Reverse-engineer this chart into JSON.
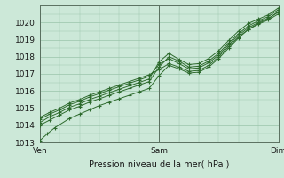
{
  "title": "",
  "xlabel": "Pression niveau de la mer( hPa )",
  "ylabel": "",
  "xlim": [
    0,
    48
  ],
  "ylim": [
    1013,
    1021
  ],
  "yticks": [
    1013,
    1014,
    1015,
    1016,
    1017,
    1018,
    1019,
    1020
  ],
  "xtick_positions": [
    0,
    24,
    48
  ],
  "xtick_labels": [
    "Ven",
    "Sam",
    "Dim"
  ],
  "background_color": "#cce8d8",
  "grid_color": "#99c4aa",
  "line_color": "#2d6a2d",
  "marker_color": "#2d6a2d",
  "series": [
    [
      0.0,
      1013.1,
      1.5,
      1013.5,
      3.0,
      1013.85,
      6.0,
      1014.4,
      8.0,
      1014.65,
      10.0,
      1014.9,
      12.0,
      1015.15,
      14.0,
      1015.35,
      16.0,
      1015.55,
      18.0,
      1015.75,
      20.0,
      1015.95,
      22.0,
      1016.15,
      24.0,
      1016.9,
      26.0,
      1017.5,
      28.0,
      1017.3,
      30.0,
      1017.05,
      32.0,
      1017.1,
      34.0,
      1017.4,
      36.0,
      1017.9,
      38.0,
      1018.5,
      40.0,
      1019.1,
      42.0,
      1019.6,
      44.0,
      1019.95,
      46.0,
      1020.2,
      48.0,
      1020.65
    ],
    [
      0.0,
      1014.0,
      2.0,
      1014.3,
      4.0,
      1014.6,
      6.0,
      1014.9,
      8.0,
      1015.1,
      10.0,
      1015.35,
      12.0,
      1015.55,
      14.0,
      1015.75,
      16.0,
      1015.95,
      18.0,
      1016.15,
      20.0,
      1016.35,
      22.0,
      1016.55,
      24.0,
      1017.4,
      26.0,
      1018.0,
      28.0,
      1017.75,
      30.0,
      1017.4,
      32.0,
      1017.45,
      34.0,
      1017.75,
      36.0,
      1018.2,
      38.0,
      1018.8,
      40.0,
      1019.35,
      42.0,
      1019.8,
      44.0,
      1020.1,
      46.0,
      1020.35,
      48.0,
      1020.75
    ],
    [
      0.0,
      1014.15,
      2.0,
      1014.5,
      4.0,
      1014.75,
      6.0,
      1015.05,
      8.0,
      1015.25,
      10.0,
      1015.5,
      12.0,
      1015.7,
      14.0,
      1015.9,
      16.0,
      1016.1,
      18.0,
      1016.3,
      20.0,
      1016.5,
      22.0,
      1016.7,
      24.0,
      1017.7,
      26.0,
      1018.2,
      28.0,
      1017.85,
      30.0,
      1017.55,
      32.0,
      1017.6,
      34.0,
      1017.9,
      36.0,
      1018.35,
      38.0,
      1018.95,
      40.0,
      1019.5,
      42.0,
      1019.95,
      44.0,
      1020.2,
      46.0,
      1020.45,
      48.0,
      1020.85
    ],
    [
      0.0,
      1014.35,
      2.0,
      1014.65,
      4.0,
      1014.9,
      6.0,
      1015.2,
      8.0,
      1015.4,
      10.0,
      1015.65,
      12.0,
      1015.85,
      14.0,
      1016.05,
      16.0,
      1016.25,
      18.0,
      1016.45,
      20.0,
      1016.65,
      22.0,
      1016.85,
      24.0,
      1017.55,
      26.0,
      1017.9,
      28.0,
      1017.6,
      30.0,
      1017.3,
      32.0,
      1017.35,
      34.0,
      1017.65,
      36.0,
      1018.1,
      38.0,
      1018.7,
      40.0,
      1019.25,
      42.0,
      1019.7,
      44.0,
      1020.0,
      46.0,
      1020.25,
      48.0,
      1020.6
    ],
    [
      0.0,
      1014.45,
      2.0,
      1014.75,
      4.0,
      1015.0,
      6.0,
      1015.3,
      8.0,
      1015.5,
      10.0,
      1015.75,
      12.0,
      1015.95,
      14.0,
      1016.15,
      16.0,
      1016.35,
      18.0,
      1016.55,
      20.0,
      1016.75,
      22.0,
      1016.95,
      24.0,
      1017.25,
      26.0,
      1017.6,
      28.0,
      1017.4,
      30.0,
      1017.15,
      32.0,
      1017.2,
      34.0,
      1017.5,
      36.0,
      1018.0,
      38.0,
      1018.6,
      40.0,
      1019.15,
      42.0,
      1019.6,
      44.0,
      1019.9,
      46.0,
      1020.15,
      48.0,
      1020.5
    ]
  ]
}
